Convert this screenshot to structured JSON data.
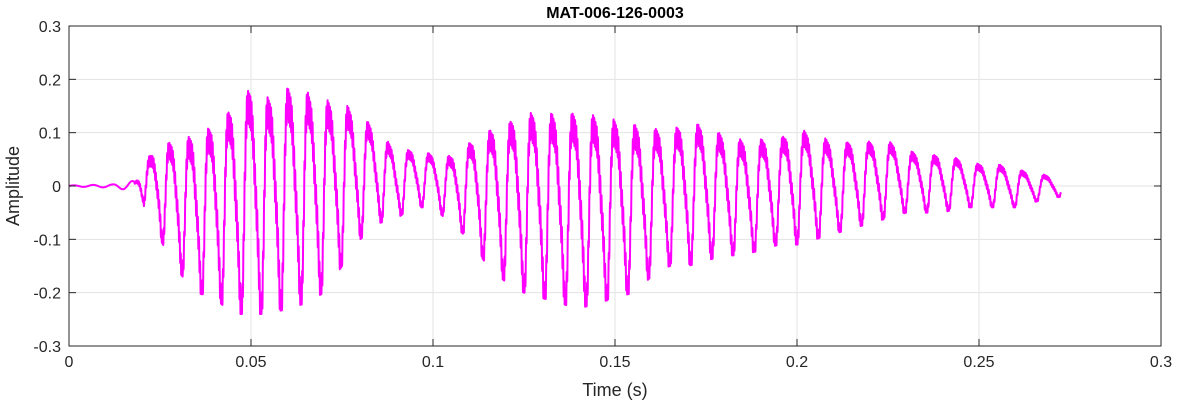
{
  "chart_data": {
    "type": "line",
    "title": "MAT-006-126-0003",
    "xlabel": "Time (s)",
    "ylabel": "Amplitude",
    "xlim": [
      0,
      0.3
    ],
    "ylim": [
      -0.3,
      0.3
    ],
    "grid": true,
    "legend": "none",
    "x_ticks": [
      0,
      0.05,
      0.1,
      0.15,
      0.2,
      0.25,
      0.3
    ],
    "x_tick_labels": [
      "0",
      "0.05",
      "0.1",
      "0.15",
      "0.2",
      "0.25",
      "0.3"
    ],
    "y_ticks": [
      -0.3,
      -0.2,
      -0.1,
      0,
      0.1,
      0.2,
      0.3
    ],
    "y_tick_labels": [
      "-0.3",
      "-0.2",
      "-0.1",
      "0",
      "0.1",
      "0.2",
      "0.3"
    ],
    "series": [
      {
        "color": "#ff00ff",
        "t_end": 0.2725,
        "onset": 0.018,
        "envelope": {
          "t": [
            0,
            0.012,
            0.018,
            0.02,
            0.022,
            0.025,
            0.03,
            0.035,
            0.04,
            0.045,
            0.05,
            0.055,
            0.06,
            0.065,
            0.07,
            0.075,
            0.08,
            0.085,
            0.09,
            0.095,
            0.1,
            0.105,
            0.11,
            0.115,
            0.12,
            0.125,
            0.13,
            0.135,
            0.14,
            0.145,
            0.15,
            0.155,
            0.16,
            0.165,
            0.17,
            0.175,
            0.18,
            0.185,
            0.19,
            0.195,
            0.2,
            0.205,
            0.21,
            0.215,
            0.22,
            0.225,
            0.23,
            0.235,
            0.24,
            0.245,
            0.25,
            0.255,
            0.26,
            0.265,
            0.2725
          ],
          "max": [
            0.001,
            0.003,
            0.01,
            0.06,
            0.07,
            0.1,
            0.11,
            0.13,
            0.15,
            0.19,
            0.23,
            0.21,
            0.23,
            0.22,
            0.2,
            0.19,
            0.16,
            0.12,
            0.08,
            0.08,
            0.07,
            0.07,
            0.1,
            0.13,
            0.15,
            0.17,
            0.18,
            0.17,
            0.18,
            0.17,
            0.16,
            0.15,
            0.14,
            0.13,
            0.15,
            0.14,
            0.12,
            0.11,
            0.11,
            0.11,
            0.13,
            0.12,
            0.1,
            0.1,
            0.1,
            0.1,
            0.08,
            0.07,
            0.07,
            0.06,
            0.05,
            0.05,
            0.04,
            0.03,
            0.02
          ],
          "min": [
            -0.001,
            -0.003,
            -0.01,
            -0.02,
            -0.08,
            -0.1,
            -0.16,
            -0.2,
            -0.21,
            -0.24,
            -0.24,
            -0.24,
            -0.23,
            -0.22,
            -0.2,
            -0.15,
            -0.1,
            -0.07,
            -0.06,
            -0.04,
            -0.04,
            -0.07,
            -0.1,
            -0.15,
            -0.18,
            -0.2,
            -0.21,
            -0.22,
            -0.23,
            -0.22,
            -0.21,
            -0.2,
            -0.17,
            -0.15,
            -0.15,
            -0.14,
            -0.13,
            -0.13,
            -0.12,
            -0.11,
            -0.11,
            -0.1,
            -0.09,
            -0.08,
            -0.07,
            -0.06,
            -0.05,
            -0.05,
            -0.05,
            -0.04,
            -0.04,
            -0.04,
            -0.04,
            -0.03,
            -0.02
          ]
        }
      }
    ]
  }
}
